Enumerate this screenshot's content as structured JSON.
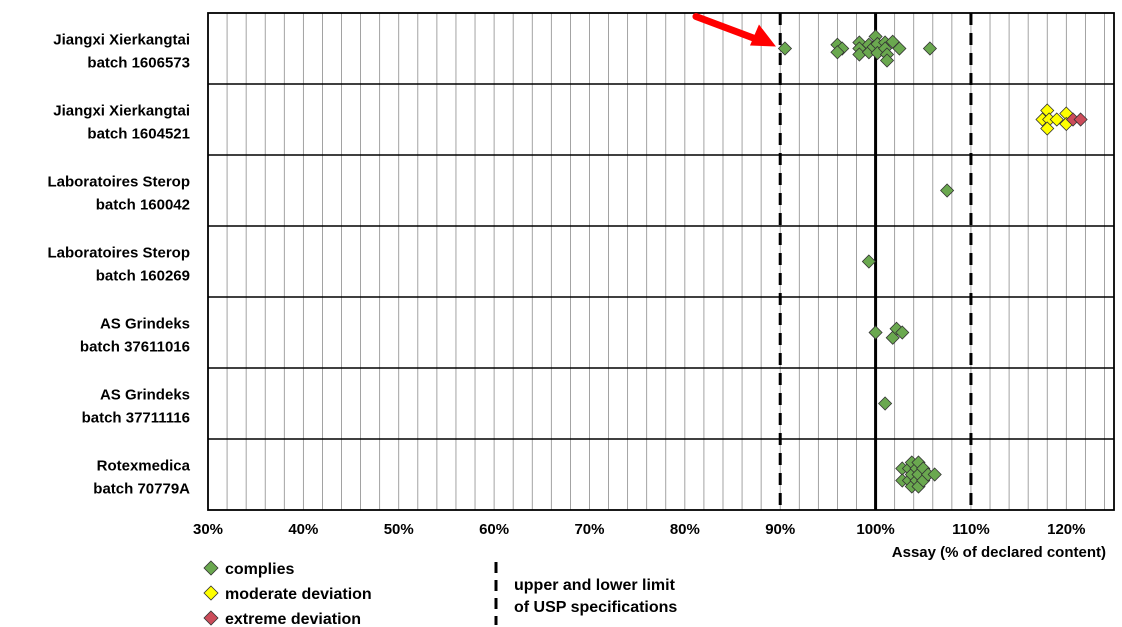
{
  "chart_data": {
    "type": "scatter",
    "xlabel": "Assay (% of declared content)",
    "ylabel": "",
    "xlim": [
      30,
      125
    ],
    "x_ticks": [
      "30%",
      "40%",
      "50%",
      "60%",
      "70%",
      "80%",
      "90%",
      "100%",
      "110%",
      "120%"
    ],
    "x_tick_values": [
      30,
      40,
      50,
      60,
      70,
      80,
      90,
      100,
      110,
      120
    ],
    "minor_gridline_step": 2,
    "grid": true,
    "reference_lines": [
      {
        "x": 90,
        "style": "dashed",
        "meaning": "lower limit"
      },
      {
        "x": 100,
        "style": "solid"
      },
      {
        "x": 110,
        "style": "dashed",
        "meaning": "upper limit"
      }
    ],
    "colors": {
      "complies": "#6aa84f",
      "moderate deviation": "#ffff00",
      "extreme deviation": "#cc4c5a",
      "arrow": "#ff0000"
    },
    "categories": [
      {
        "line1": "Jiangxi Xierkangtai",
        "line2": "batch 1606573"
      },
      {
        "line1": "Jiangxi Xierkangtai",
        "line2": "batch 1604521"
      },
      {
        "line1": "Laboratoires Sterop",
        "line2": "batch 160042"
      },
      {
        "line1": "Laboratoires Sterop",
        "line2": "batch 160269"
      },
      {
        "line1": "AS Grindeks",
        "line2": "batch 37611016"
      },
      {
        "line1": "AS Grindeks",
        "line2": "batch 37711116"
      },
      {
        "line1": "Rotexmedica",
        "line2": "batch 70779A"
      }
    ],
    "points": [
      {
        "row": 0,
        "x": 90.5,
        "y": 0,
        "status": "complies"
      },
      {
        "row": 0,
        "x": 96.0,
        "y": 0.5,
        "status": "complies"
      },
      {
        "row": 0,
        "x": 96.5,
        "y": 0,
        "status": "complies"
      },
      {
        "row": 0,
        "x": 96.0,
        "y": -0.5,
        "status": "complies"
      },
      {
        "row": 0,
        "x": 98.3,
        "y": 0.8,
        "status": "complies"
      },
      {
        "row": 0,
        "x": 98.3,
        "y": 0,
        "status": "complies"
      },
      {
        "row": 0,
        "x": 98.3,
        "y": -0.8,
        "status": "complies"
      },
      {
        "row": 0,
        "x": 99.3,
        "y": 0.5,
        "status": "complies"
      },
      {
        "row": 0,
        "x": 99.3,
        "y": -0.5,
        "status": "complies"
      },
      {
        "row": 0,
        "x": 99.8,
        "y": 0.2,
        "status": "complies"
      },
      {
        "row": 0,
        "x": 100.0,
        "y": 1.6,
        "status": "complies"
      },
      {
        "row": 0,
        "x": 100.2,
        "y": 0.6,
        "status": "complies"
      },
      {
        "row": 0,
        "x": 100.2,
        "y": -0.6,
        "status": "complies"
      },
      {
        "row": 0,
        "x": 101.0,
        "y": 0.8,
        "status": "complies"
      },
      {
        "row": 0,
        "x": 101.0,
        "y": 0,
        "status": "complies"
      },
      {
        "row": 0,
        "x": 101.2,
        "y": -0.8,
        "status": "complies"
      },
      {
        "row": 0,
        "x": 101.2,
        "y": -1.6,
        "status": "complies"
      },
      {
        "row": 0,
        "x": 101.8,
        "y": 0.9,
        "status": "complies"
      },
      {
        "row": 0,
        "x": 102.5,
        "y": 0,
        "status": "complies"
      },
      {
        "row": 0,
        "x": 105.7,
        "y": 0,
        "status": "complies"
      },
      {
        "row": 1,
        "x": 117.5,
        "y": 0,
        "status": "moderate deviation"
      },
      {
        "row": 1,
        "x": 118.0,
        "y": 1.2,
        "status": "moderate deviation"
      },
      {
        "row": 1,
        "x": 118.2,
        "y": 0,
        "status": "moderate deviation"
      },
      {
        "row": 1,
        "x": 118.0,
        "y": -1.2,
        "status": "moderate deviation"
      },
      {
        "row": 1,
        "x": 119.0,
        "y": 0,
        "status": "moderate deviation"
      },
      {
        "row": 1,
        "x": 120.0,
        "y": 0.8,
        "status": "moderate deviation"
      },
      {
        "row": 1,
        "x": 120.0,
        "y": -0.6,
        "status": "moderate deviation"
      },
      {
        "row": 1,
        "x": 120.7,
        "y": 0,
        "status": "extreme deviation"
      },
      {
        "row": 1,
        "x": 121.5,
        "y": 0,
        "status": "extreme deviation"
      },
      {
        "row": 2,
        "x": 107.5,
        "y": 0,
        "status": "complies"
      },
      {
        "row": 3,
        "x": 99.3,
        "y": 0,
        "status": "complies"
      },
      {
        "row": 4,
        "x": 100.0,
        "y": 0,
        "status": "complies"
      },
      {
        "row": 4,
        "x": 101.8,
        "y": -0.7,
        "status": "complies"
      },
      {
        "row": 4,
        "x": 102.2,
        "y": 0.5,
        "status": "complies"
      },
      {
        "row": 4,
        "x": 102.8,
        "y": 0,
        "status": "complies"
      },
      {
        "row": 5,
        "x": 101.0,
        "y": 0,
        "status": "complies"
      },
      {
        "row": 6,
        "x": 102.8,
        "y": 0.8,
        "status": "complies"
      },
      {
        "row": 6,
        "x": 102.8,
        "y": -0.8,
        "status": "complies"
      },
      {
        "row": 6,
        "x": 103.5,
        "y": 0.8,
        "status": "complies"
      },
      {
        "row": 6,
        "x": 103.5,
        "y": -0.8,
        "status": "complies"
      },
      {
        "row": 6,
        "x": 103.8,
        "y": 1.6,
        "status": "complies"
      },
      {
        "row": 6,
        "x": 103.8,
        "y": 0,
        "status": "complies"
      },
      {
        "row": 6,
        "x": 103.8,
        "y": -1.6,
        "status": "complies"
      },
      {
        "row": 6,
        "x": 104.3,
        "y": 0.8,
        "status": "complies"
      },
      {
        "row": 6,
        "x": 104.3,
        "y": -0.8,
        "status": "complies"
      },
      {
        "row": 6,
        "x": 104.5,
        "y": 1.6,
        "status": "complies"
      },
      {
        "row": 6,
        "x": 104.5,
        "y": 0,
        "status": "complies"
      },
      {
        "row": 6,
        "x": 104.5,
        "y": -1.6,
        "status": "complies"
      },
      {
        "row": 6,
        "x": 105.0,
        "y": 0.8,
        "status": "complies"
      },
      {
        "row": 6,
        "x": 105.0,
        "y": -0.8,
        "status": "complies"
      },
      {
        "row": 6,
        "x": 105.5,
        "y": 0,
        "status": "complies"
      },
      {
        "row": 6,
        "x": 106.2,
        "y": 0,
        "status": "complies"
      }
    ],
    "arrow": {
      "target_x": 90.5,
      "target_row": 0
    },
    "legend": {
      "placement": "bottom-left",
      "items": [
        {
          "label": "complies",
          "status": "complies"
        },
        {
          "label": "moderate deviation",
          "status": "moderate deviation"
        },
        {
          "label": "extreme deviation",
          "status": "extreme deviation"
        }
      ],
      "limit_label_line1": "upper and lower limit",
      "limit_label_line2": "of USP specifications"
    }
  }
}
